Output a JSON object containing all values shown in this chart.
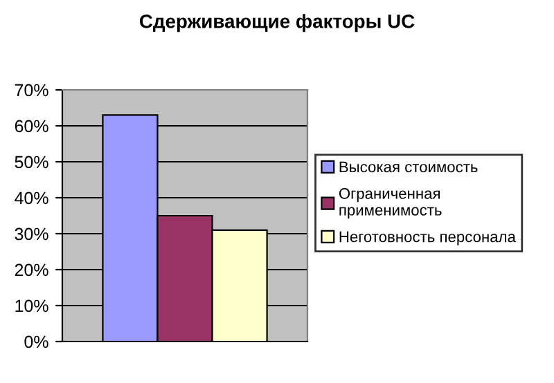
{
  "chart_data": {
    "type": "bar",
    "title": "Сдерживающие факторы UC",
    "categories": [
      null
    ],
    "series": [
      {
        "name": "Высокая стоимость",
        "color": "#9999ff",
        "values": [
          63
        ]
      },
      {
        "name": "Ограниченная\nприменимость",
        "color": "#993366",
        "values": [
          35
        ]
      },
      {
        "name": "Неготовность персонала",
        "color": "#ffffcc",
        "values": [
          31
        ]
      }
    ],
    "ylim": [
      0,
      70
    ],
    "yticks": [
      {
        "value": 0,
        "label": "0%"
      },
      {
        "value": 10,
        "label": "10%"
      },
      {
        "value": 20,
        "label": "20%"
      },
      {
        "value": 30,
        "label": "30%"
      },
      {
        "value": 40,
        "label": "40%"
      },
      {
        "value": 50,
        "label": "50%"
      },
      {
        "value": 60,
        "label": "60%"
      },
      {
        "value": 70,
        "label": "70%"
      }
    ],
    "grid": "y",
    "legend": "right"
  }
}
